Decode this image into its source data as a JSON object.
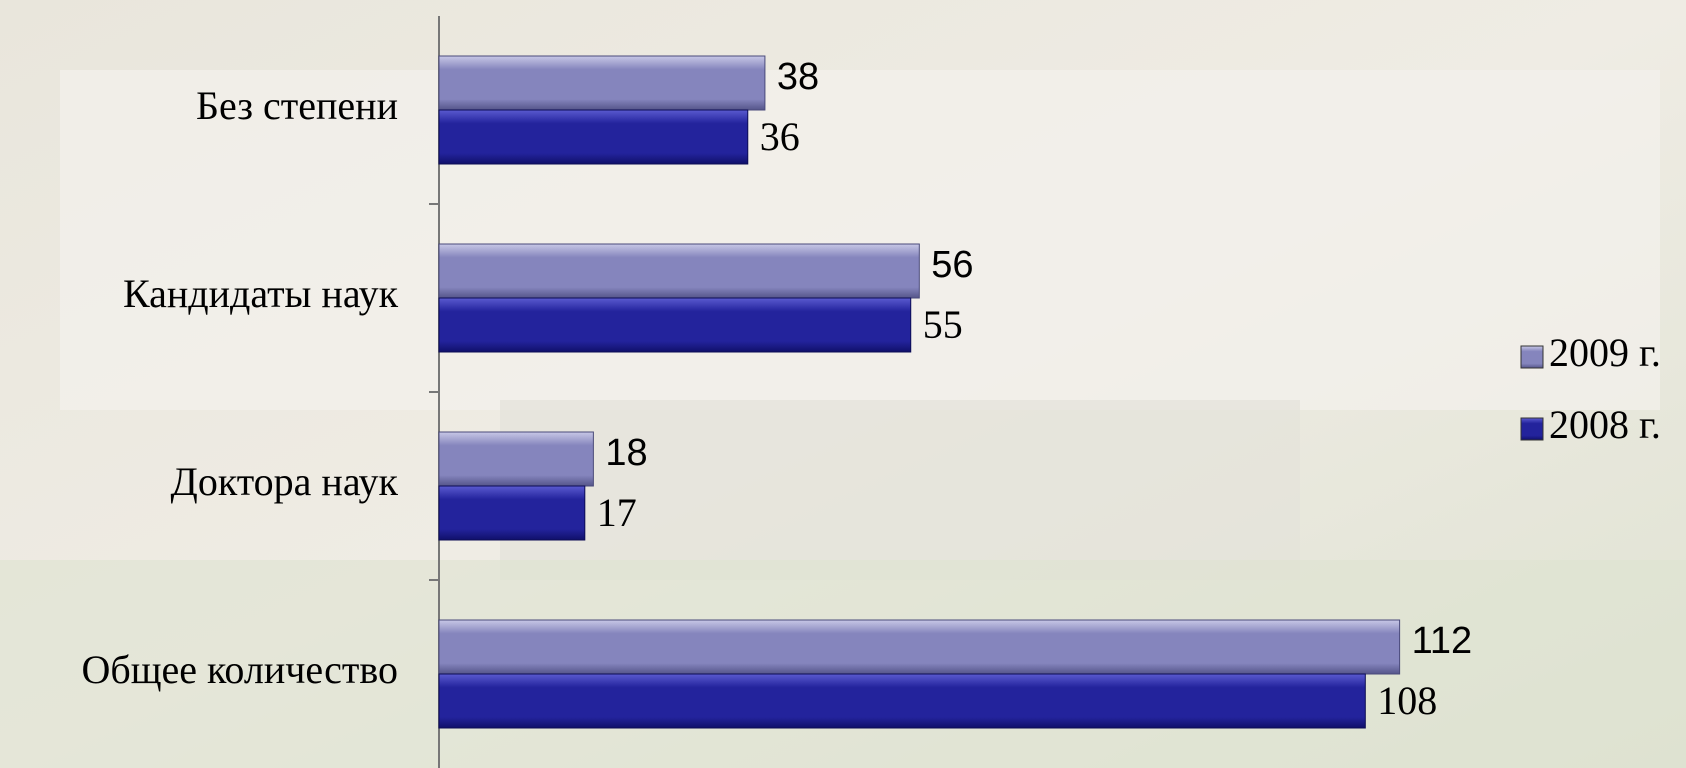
{
  "chart_data": {
    "type": "hbar",
    "categories": [
      "Без степени",
      "Кандидаты наук",
      "Доктора наук",
      "Общее количество"
    ],
    "series": [
      {
        "name": "2009 г.",
        "color": "#8585bd",
        "values": [
          38,
          56,
          18,
          112
        ]
      },
      {
        "name": "2008 г.",
        "color": "#23239c",
        "values": [
          36,
          55,
          17,
          108
        ]
      }
    ],
    "xlim": [
      0,
      130
    ],
    "legend": "right"
  }
}
